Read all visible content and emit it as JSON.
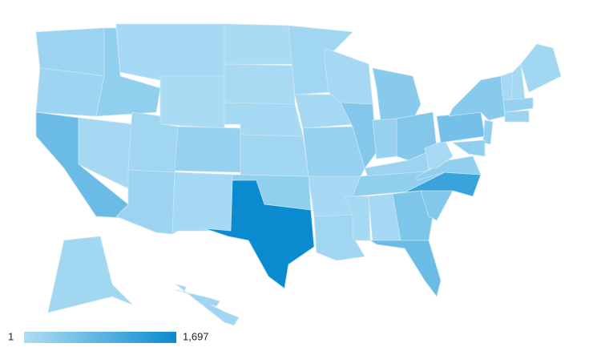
{
  "chart_data": {
    "type": "choropleth",
    "values": [
      200,
      180,
      700,
      100,
      300,
      80,
      50,
      150,
      250,
      200,
      100,
      50,
      60,
      80,
      120,
      300,
      1697,
      150,
      100,
      250,
      80,
      150,
      100,
      450,
      400,
      250,
      450,
      200,
      300,
      80,
      100,
      500,
      700,
      450,
      1200,
      300,
      60,
      600,
      400,
      300,
      300,
      80,
      100,
      120,
      250,
      200,
      120,
      150
    ],
    "colorlim": [
      1,
      1697
    ],
    "colorticks": [
      1,
      {
        "value": 1697,
        "label": "1,697"
      }
    ],
    "colors": [
      "#aeddf5",
      "#0a8bd0"
    ]
  }
}
